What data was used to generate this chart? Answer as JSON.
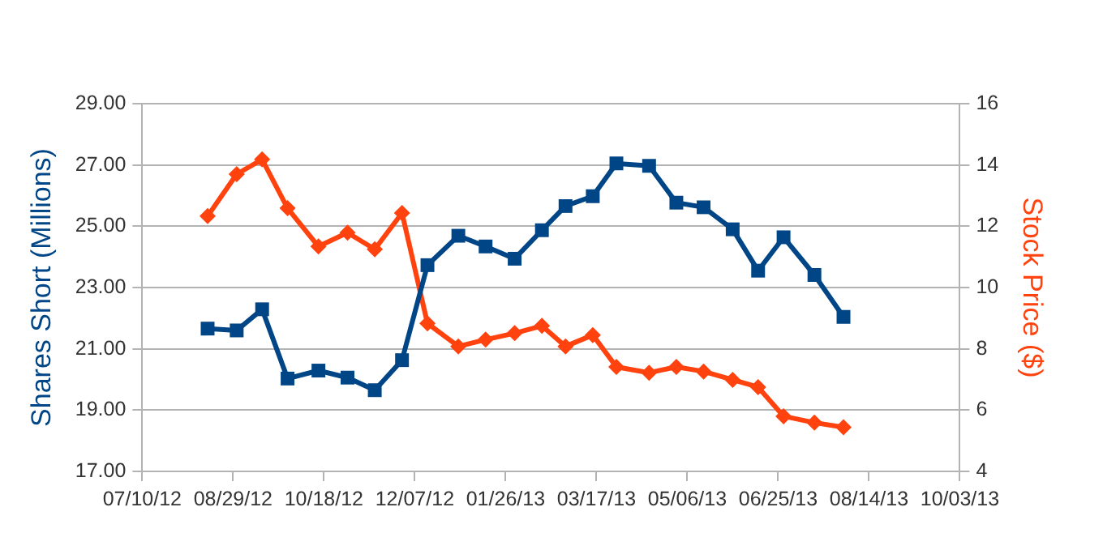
{
  "chart_data": {
    "type": "line",
    "ylabel": "Shares Short (Millions)",
    "y2label": "Stock Price ($)",
    "x": [
      "2012-08-15",
      "2012-08-31",
      "2012-09-14",
      "2012-09-28",
      "2012-10-15",
      "2012-10-31",
      "2012-11-15",
      "2012-11-30",
      "2012-12-14",
      "2012-12-31",
      "2013-01-15",
      "2013-01-31",
      "2013-02-15",
      "2013-02-28",
      "2013-03-15",
      "2013-03-28",
      "2013-04-15",
      "2013-04-30",
      "2013-05-15",
      "2013-05-31",
      "2013-06-14",
      "2013-06-28",
      "2013-07-15",
      "2013-07-31"
    ],
    "series": [
      {
        "color": "#004586",
        "marker": "square",
        "values": [
          21.66,
          21.6,
          22.29,
          20.03,
          20.29,
          20.06,
          19.65,
          20.63,
          23.73,
          24.69,
          24.34,
          23.94,
          24.87,
          25.66,
          25.98,
          27.05,
          26.97,
          25.77,
          25.62,
          24.9,
          23.55,
          24.64,
          23.41,
          22.04
        ]
      },
      {
        "color": "#ff420e",
        "marker": "diamond",
        "axis": "y2",
        "values": [
          12.33,
          13.7,
          14.18,
          12.59,
          11.34,
          11.79,
          11.25,
          12.43,
          8.83,
          8.08,
          8.3,
          8.51,
          8.75,
          8.08,
          8.45,
          7.41,
          7.22,
          7.41,
          7.26,
          6.99,
          6.75,
          5.8,
          5.59,
          5.44
        ]
      }
    ],
    "xlim": [
      "2012-07-10",
      "2013-10-03"
    ],
    "xticks": [
      {
        "value": "2012-07-10",
        "label": "07/10/12"
      },
      {
        "value": "2012-08-29",
        "label": "08/29/12"
      },
      {
        "value": "2012-10-18",
        "label": "10/18/12"
      },
      {
        "value": "2012-12-07",
        "label": "12/07/12"
      },
      {
        "value": "2013-01-26",
        "label": "01/26/13"
      },
      {
        "value": "2013-03-17",
        "label": "03/17/13"
      },
      {
        "value": "2013-05-06",
        "label": "05/06/13"
      },
      {
        "value": "2013-06-25",
        "label": "06/25/13"
      },
      {
        "value": "2013-08-14",
        "label": "08/14/13"
      },
      {
        "value": "2013-10-03",
        "label": "10/03/13"
      }
    ],
    "ylim": [
      17,
      29
    ],
    "yticks": [
      {
        "value": 17,
        "label": "17.00"
      },
      {
        "value": 19,
        "label": "19.00"
      },
      {
        "value": 21,
        "label": "21.00"
      },
      {
        "value": 23,
        "label": "23.00"
      },
      {
        "value": 25,
        "label": "25.00"
      },
      {
        "value": 27,
        "label": "27.00"
      },
      {
        "value": 29,
        "label": "29.00"
      }
    ],
    "y2lim": [
      4,
      16
    ],
    "y2ticks": [
      4,
      6,
      8,
      10,
      12,
      14,
      16
    ],
    "grid": "y",
    "line_style": "solid"
  }
}
